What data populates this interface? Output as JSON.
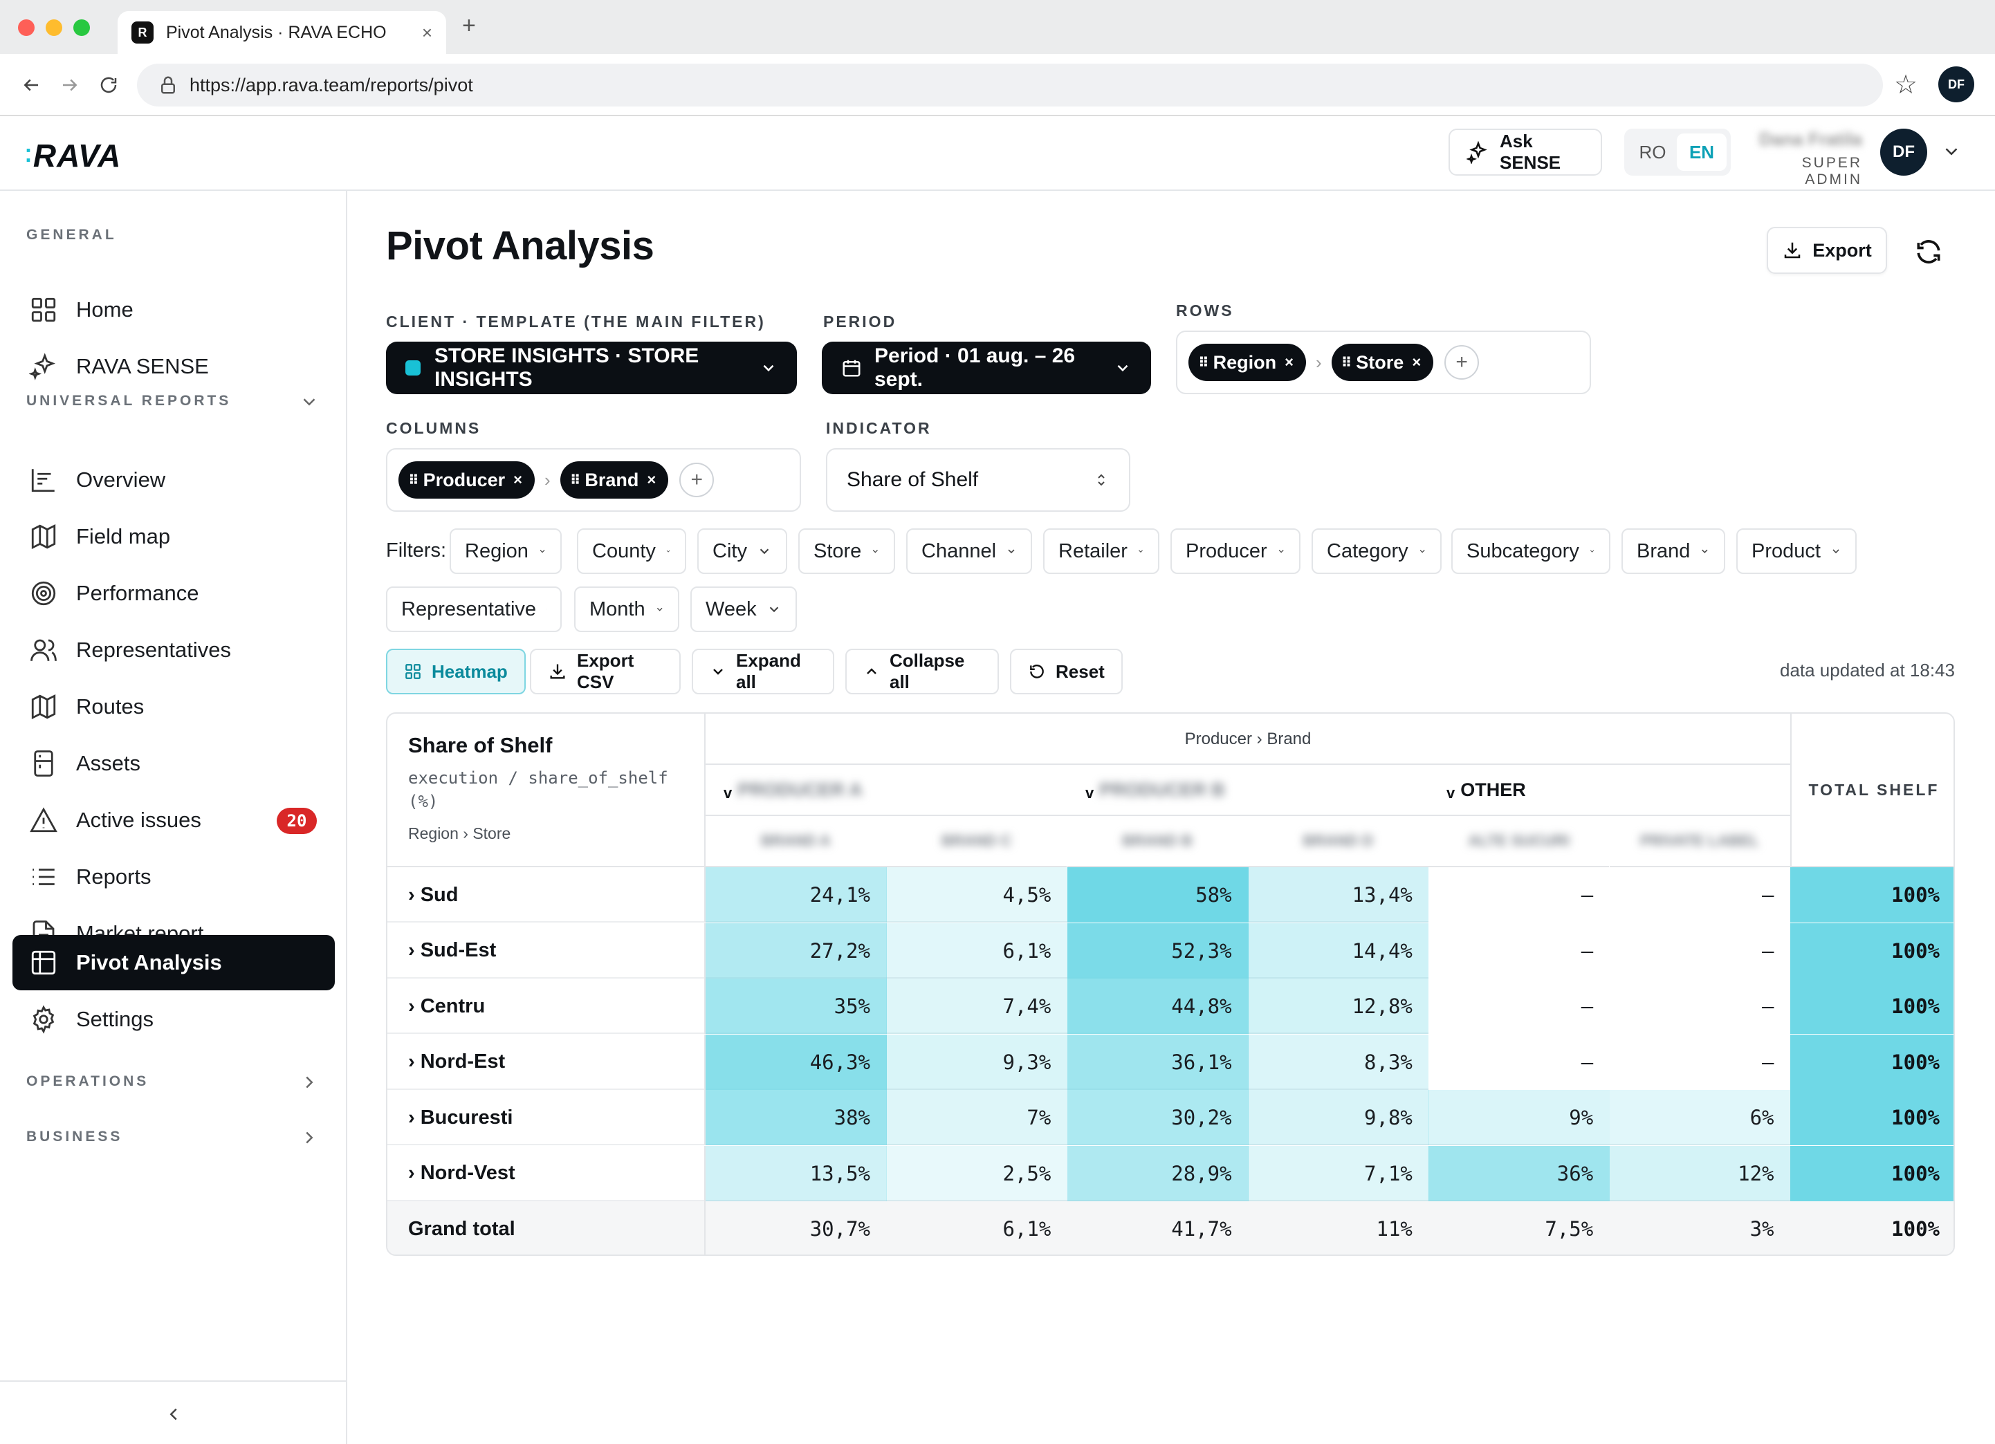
{
  "browser": {
    "tab_title": "Pivot Analysis · RAVA ECHO",
    "favicon_letter": "R",
    "url": "https://app.rava.team/reports/pivot",
    "profile_initials": "DF"
  },
  "header": {
    "logo": "RAVA",
    "ask_sense_line1": "Ask",
    "ask_sense_line2": "SENSE",
    "lang_ro": "RO",
    "lang_en": "EN",
    "user_name": "Dana Fratila",
    "user_role": "SUPER ADMIN",
    "avatar_initials": "DF"
  },
  "sidebar": {
    "general_label": "GENERAL",
    "universal_label": "UNIVERSAL REPORTS",
    "operations_label": "OPERATIONS",
    "business_label": "BUSINESS",
    "items": [
      {
        "label": "Home",
        "icon": "grid-icon"
      },
      {
        "label": "RAVA SENSE",
        "icon": "sparkles-icon"
      },
      {
        "label": "Overview",
        "icon": "chart-icon"
      },
      {
        "label": "Field map",
        "icon": "map-icon"
      },
      {
        "label": "Performance",
        "icon": "target-icon"
      },
      {
        "label": "Representatives",
        "icon": "users-icon"
      },
      {
        "label": "Routes",
        "icon": "map-icon"
      },
      {
        "label": "Assets",
        "icon": "fridge-icon"
      },
      {
        "label": "Active issues",
        "icon": "warning-icon",
        "badge": "20"
      },
      {
        "label": "Reports",
        "icon": "list-icon"
      },
      {
        "label": "Market report",
        "icon": "document-icon"
      },
      {
        "label": "Pivot Analysis",
        "icon": "table-icon"
      },
      {
        "label": "Settings",
        "icon": "gear-icon"
      }
    ]
  },
  "main": {
    "title": "Pivot Analysis",
    "export_label": "Export",
    "client_label": "CLIENT · TEMPLATE (THE MAIN FILTER)",
    "client_value": "STORE INSIGHTS · STORE INSIGHTS",
    "period_label": "PERIOD",
    "period_value": "Period · 01 aug. – 26 sept.",
    "rows_label": "ROWS",
    "rows_chips": [
      "Region",
      "Store"
    ],
    "columns_label": "COLUMNS",
    "columns_chips": [
      "Producer",
      "Brand"
    ],
    "indicator_label": "INDICATOR",
    "indicator_value": "Share of Shelf",
    "filters_label": "Filters:",
    "filters": [
      "Region",
      "County",
      "City",
      "Store",
      "Channel",
      "Retailer",
      "Producer",
      "Category",
      "Subcategory",
      "Brand",
      "Product",
      "Representative",
      "Month",
      "Week"
    ],
    "actions": {
      "heatmap": "Heatmap",
      "export_csv_1": "Export",
      "export_csv_2": "CSV",
      "expand_1": "Expand",
      "expand_2": "all",
      "collapse_1": "Collapse",
      "collapse_2": "all",
      "reset": "Reset"
    },
    "updated": "data updated at 18:43"
  },
  "pivot": {
    "title": "Share of Shelf",
    "subtitle": "execution / share_of_shelf (%)",
    "row_path": "Region › Store",
    "col_path": "Producer › Brand",
    "producers": [
      "PRODUCER A",
      "PRODUCER B",
      "OTHER"
    ],
    "brands": [
      "BRAND A",
      "BRAND C",
      "BRAND B",
      "BRAND D",
      "ALTE SUCURI",
      "PRIVATE LABEL"
    ],
    "total_label": "TOTAL SHELF",
    "grand_total_label": "Grand total",
    "rows": [
      {
        "label": "› Sud",
        "cells": [
          "24,1%",
          "4,5%",
          "58%",
          "13,4%",
          "–",
          "–"
        ],
        "heat": [
          24.1,
          4.5,
          58,
          13.4,
          null,
          null
        ],
        "total": "100%"
      },
      {
        "label": "› Sud-Est",
        "cells": [
          "27,2%",
          "6,1%",
          "52,3%",
          "14,4%",
          "–",
          "–"
        ],
        "heat": [
          27.2,
          6.1,
          52.3,
          14.4,
          null,
          null
        ],
        "total": "100%"
      },
      {
        "label": "› Centru",
        "cells": [
          "35%",
          "7,4%",
          "44,8%",
          "12,8%",
          "–",
          "–"
        ],
        "heat": [
          35,
          7.4,
          44.8,
          12.8,
          null,
          null
        ],
        "total": "100%"
      },
      {
        "label": "› Nord-Est",
        "cells": [
          "46,3%",
          "9,3%",
          "36,1%",
          "8,3%",
          "–",
          "–"
        ],
        "heat": [
          46.3,
          9.3,
          36.1,
          8.3,
          null,
          null
        ],
        "total": "100%"
      },
      {
        "label": "› Bucuresti",
        "cells": [
          "38%",
          "7%",
          "30,2%",
          "9,8%",
          "9%",
          "6%"
        ],
        "heat": [
          38,
          7,
          30.2,
          9.8,
          9,
          6
        ],
        "total": "100%"
      },
      {
        "label": "› Nord-Vest",
        "cells": [
          "13,5%",
          "2,5%",
          "28,9%",
          "7,1%",
          "36%",
          "12%"
        ],
        "heat": [
          13.5,
          2.5,
          28.9,
          7.1,
          36,
          12
        ],
        "total": "100%"
      }
    ],
    "grand_total": {
      "cells": [
        "30,7%",
        "6,1%",
        "41,7%",
        "11%",
        "7,5%",
        "3%"
      ],
      "total": "100%"
    },
    "heat_color": "#6fd8e6"
  }
}
